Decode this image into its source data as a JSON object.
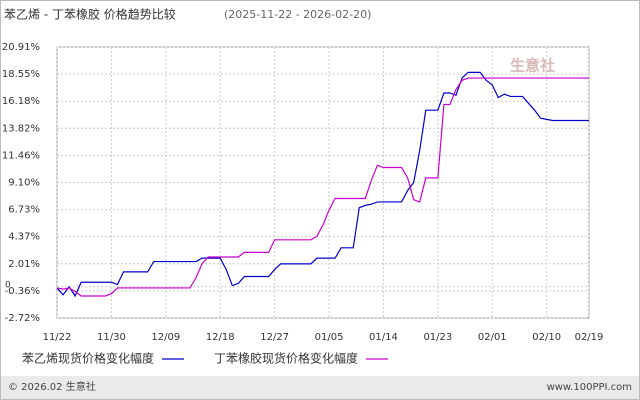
{
  "chart_data": {
    "type": "line",
    "title": "苯乙烯 - 丁苯橡胶 价格趋势比较",
    "subtitle": "(2025-11-22 - 2026-02-20)",
    "watermark": "生意社",
    "footer_left": "© 2026.02 生意社",
    "footer_right": "www.100PPI.com",
    "categories": [
      "11/22",
      null,
      null,
      null,
      null,
      null,
      null,
      null,
      null,
      "11/30",
      null,
      null,
      null,
      null,
      null,
      null,
      null,
      null,
      "12/09",
      null,
      null,
      null,
      null,
      null,
      null,
      null,
      null,
      "12/18",
      null,
      null,
      null,
      null,
      null,
      null,
      null,
      null,
      "12/27",
      null,
      null,
      null,
      null,
      null,
      null,
      null,
      null,
      "01/05",
      null,
      null,
      null,
      null,
      null,
      null,
      null,
      null,
      "01/14",
      null,
      null,
      null,
      null,
      null,
      null,
      null,
      null,
      "01/23",
      null,
      null,
      null,
      null,
      null,
      null,
      null,
      null,
      "02/01",
      null,
      null,
      null,
      null,
      null,
      null,
      null,
      null,
      "02/10",
      null,
      null,
      null,
      null,
      null,
      null,
      "02/19"
    ],
    "series": [
      {
        "name": "苯乙烯现货价格变化幅度",
        "color": "#0000cc",
        "values": [
          -0.1,
          -0.7,
          0,
          -0.8,
          0.4,
          0.4,
          0.4,
          0.4,
          0.4,
          0.4,
          0.2,
          1.3,
          1.3,
          1.3,
          1.3,
          1.3,
          2.2,
          2.2,
          2.2,
          2.2,
          2.2,
          2.2,
          2.2,
          2.2,
          2.5,
          2.5,
          2.5,
          2.5,
          1.5,
          0.1,
          0.3,
          0.9,
          0.9,
          0.9,
          0.9,
          0.9,
          1.5,
          2.0,
          2.0,
          2.0,
          2.0,
          2.0,
          2.0,
          2.5,
          2.5,
          2.5,
          2.5,
          3.4,
          3.4,
          3.4,
          6.9,
          7.1,
          7.2,
          7.4,
          7.4,
          7.4,
          7.4,
          7.4,
          8.4,
          9.1,
          11.9,
          15.4,
          15.4,
          15.4,
          16.9,
          16.9,
          16.7,
          18.2,
          18.7,
          18.7,
          18.7,
          18.0,
          17.6,
          16.5,
          16.8,
          16.6,
          16.6,
          16.6,
          16.0,
          15.4,
          14.7,
          14.6,
          14.5,
          14.5,
          14.5,
          14.5,
          14.5,
          14.5,
          14.5
        ]
      },
      {
        "name": "丁苯橡胶现货价格变化幅度",
        "color": "#cc00cc",
        "values": [
          -0.1,
          -0.2,
          -0.1,
          -0.4,
          -0.8,
          -0.8,
          -0.8,
          -0.8,
          -0.8,
          -0.6,
          -0.1,
          -0.1,
          -0.1,
          -0.1,
          -0.1,
          -0.1,
          -0.1,
          -0.1,
          -0.1,
          -0.1,
          -0.1,
          -0.1,
          -0.1,
          0.8,
          2.0,
          2.6,
          2.6,
          2.6,
          2.6,
          2.6,
          2.6,
          3.0,
          3.0,
          3.0,
          3.0,
          3.0,
          4.1,
          4.1,
          4.1,
          4.1,
          4.1,
          4.1,
          4.1,
          4.4,
          5.4,
          6.7,
          7.7,
          7.7,
          7.7,
          7.7,
          7.7,
          7.7,
          9.3,
          10.6,
          10.4,
          10.4,
          10.4,
          10.4,
          9.5,
          7.6,
          7.4,
          9.5,
          9.5,
          9.5,
          15.9,
          15.9,
          17.2,
          18.0,
          18.2,
          18.2,
          18.2,
          18.2,
          18.2,
          18.2,
          18.2,
          18.2,
          18.2,
          18.2,
          18.2,
          18.2,
          18.2,
          18.2,
          18.2,
          18.2,
          18.2,
          18.2,
          18.2,
          18.2,
          18.2
        ]
      }
    ],
    "ylim": [
      -2.72,
      20.91
    ],
    "yticks": [
      {
        "value": 20.91,
        "label": "20.91%"
      },
      {
        "value": 18.55,
        "label": "18.55%"
      },
      {
        "value": 16.18,
        "label": "16.18%"
      },
      {
        "value": 13.82,
        "label": "13.82%"
      },
      {
        "value": 11.46,
        "label": "11.46%"
      },
      {
        "value": 9.1,
        "label": "9.10%"
      },
      {
        "value": 6.73,
        "label": "6.73%"
      },
      {
        "value": 4.37,
        "label": "4.37%"
      },
      {
        "value": 2.01,
        "label": "2.01%"
      },
      0,
      {
        "value": -0.36,
        "label": "-0.36%"
      },
      {
        "value": -2.72,
        "label": "-2.72%"
      }
    ],
    "grid": true
  }
}
